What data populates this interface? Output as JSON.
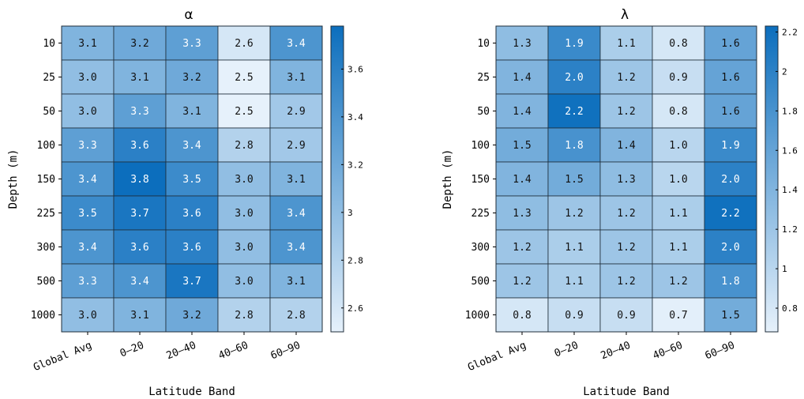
{
  "chart_data": [
    {
      "type": "heatmap",
      "title": "α",
      "xlabel": "Latitude Band",
      "ylabel": "Depth (m)",
      "x_categories": [
        "Global Avg",
        "0–20",
        "20–40",
        "40–60",
        "60–90"
      ],
      "y_categories": [
        "10",
        "25",
        "50",
        "100",
        "150",
        "225",
        "300",
        "500",
        "1000"
      ],
      "values": [
        [
          3.1,
          3.2,
          3.3,
          2.6,
          3.4
        ],
        [
          3.0,
          3.1,
          3.2,
          2.5,
          3.1
        ],
        [
          3.0,
          3.3,
          3.1,
          2.5,
          2.9
        ],
        [
          3.3,
          3.6,
          3.4,
          2.8,
          2.9
        ],
        [
          3.4,
          3.8,
          3.5,
          3.0,
          3.1
        ],
        [
          3.5,
          3.7,
          3.6,
          3.0,
          3.4
        ],
        [
          3.4,
          3.6,
          3.6,
          3.0,
          3.4
        ],
        [
          3.3,
          3.4,
          3.7,
          3.0,
          3.1
        ],
        [
          3.0,
          3.1,
          3.2,
          2.8,
          2.8
        ]
      ],
      "colorbar": {
        "range": [
          2.5,
          3.78
        ],
        "ticks": [
          2.6,
          2.8,
          3.0,
          3.2,
          3.4,
          3.6
        ],
        "tick_labels": [
          "2.6",
          "2.8",
          "3",
          "3.2",
          "3.4",
          "3.6"
        ],
        "colormap": [
          "#e6f1fb",
          "#0c6ebd"
        ]
      }
    },
    {
      "type": "heatmap",
      "title": "λ",
      "xlabel": "Latitude Band",
      "ylabel": "Depth (m)",
      "x_categories": [
        "Global Avg",
        "0–20",
        "20–40",
        "40–60",
        "60–90"
      ],
      "y_categories": [
        "10",
        "25",
        "50",
        "100",
        "150",
        "225",
        "300",
        "500",
        "1000"
      ],
      "values": [
        [
          1.3,
          1.9,
          1.1,
          0.8,
          1.6
        ],
        [
          1.4,
          2.0,
          1.2,
          0.9,
          1.6
        ],
        [
          1.4,
          2.2,
          1.2,
          0.8,
          1.6
        ],
        [
          1.5,
          1.8,
          1.4,
          1.0,
          1.9
        ],
        [
          1.4,
          1.5,
          1.3,
          1.0,
          2.0
        ],
        [
          1.3,
          1.2,
          1.2,
          1.1,
          2.2
        ],
        [
          1.2,
          1.1,
          1.2,
          1.1,
          2.0
        ],
        [
          1.2,
          1.1,
          1.2,
          1.2,
          1.8
        ],
        [
          0.8,
          0.9,
          0.9,
          0.7,
          1.5
        ]
      ],
      "colorbar": {
        "range": [
          0.68,
          2.23
        ],
        "ticks": [
          0.8,
          1.0,
          1.2,
          1.4,
          1.6,
          1.8,
          2.0,
          2.2
        ],
        "tick_labels": [
          "0.8",
          "1",
          "1.2",
          "1.4",
          "1.6",
          "1.8",
          "2",
          "2.2"
        ],
        "colormap": [
          "#e6f1fb",
          "#0c6ebd"
        ]
      }
    }
  ]
}
